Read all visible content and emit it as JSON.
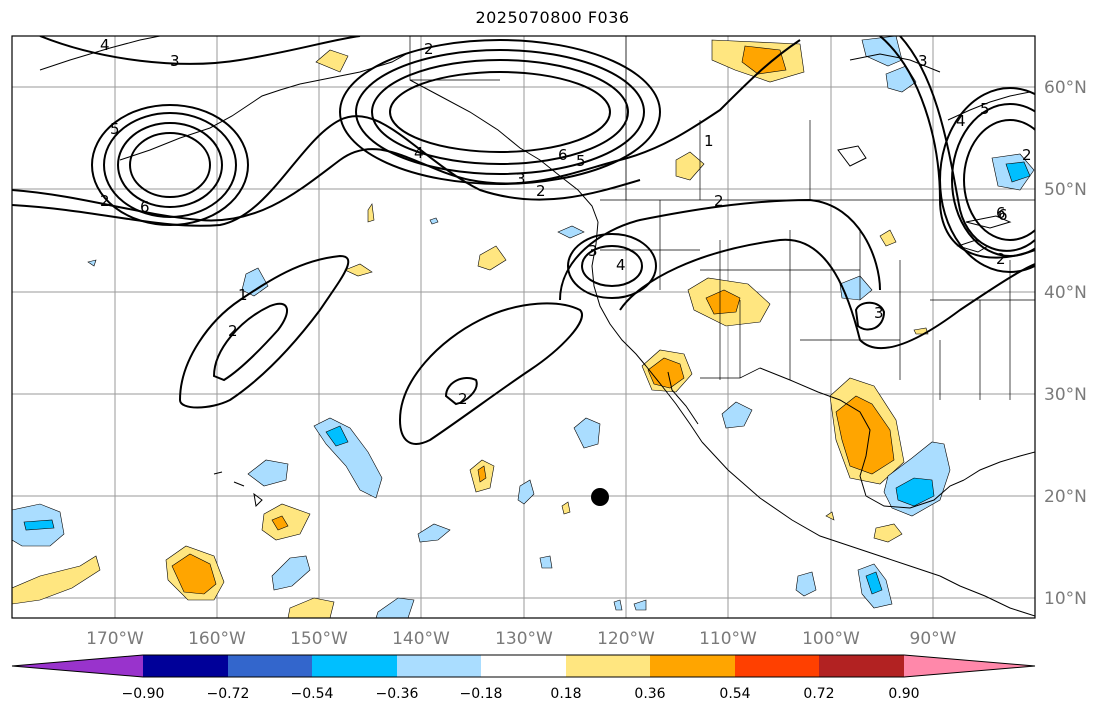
{
  "title": "2025070800 F036",
  "map": {
    "longitude_labels": [
      "170°W",
      "160°W",
      "150°W",
      "140°W",
      "130°W",
      "120°W",
      "110°W",
      "100°W",
      "90°W"
    ],
    "latitude_labels": [
      "60°N",
      "50°N",
      "40°N",
      "30°N",
      "20°N",
      "10°N"
    ],
    "contour_labels": [
      "4",
      "3",
      "2",
      "5",
      "6",
      "4",
      "6",
      "2",
      "3",
      "2",
      "6",
      "5",
      "1",
      "2",
      "2",
      "3",
      "4",
      "1",
      "2",
      "2",
      "3",
      "5",
      "4",
      "3",
      "6",
      "2"
    ],
    "marker": "black-dot"
  },
  "colorbar": {
    "tick_labels": [
      "−0.90",
      "−0.72",
      "−0.54",
      "−0.36",
      "−0.18",
      "0.18",
      "0.36",
      "0.54",
      "0.72",
      "0.90"
    ],
    "colors": [
      "#9933cc",
      "#000099",
      "#3366cc",
      "#00bfff",
      "#aaddff",
      "#ffffff",
      "#ffe680",
      "#ffa500",
      "#ff4000",
      "#b22222",
      "#ff88aa"
    ]
  }
}
